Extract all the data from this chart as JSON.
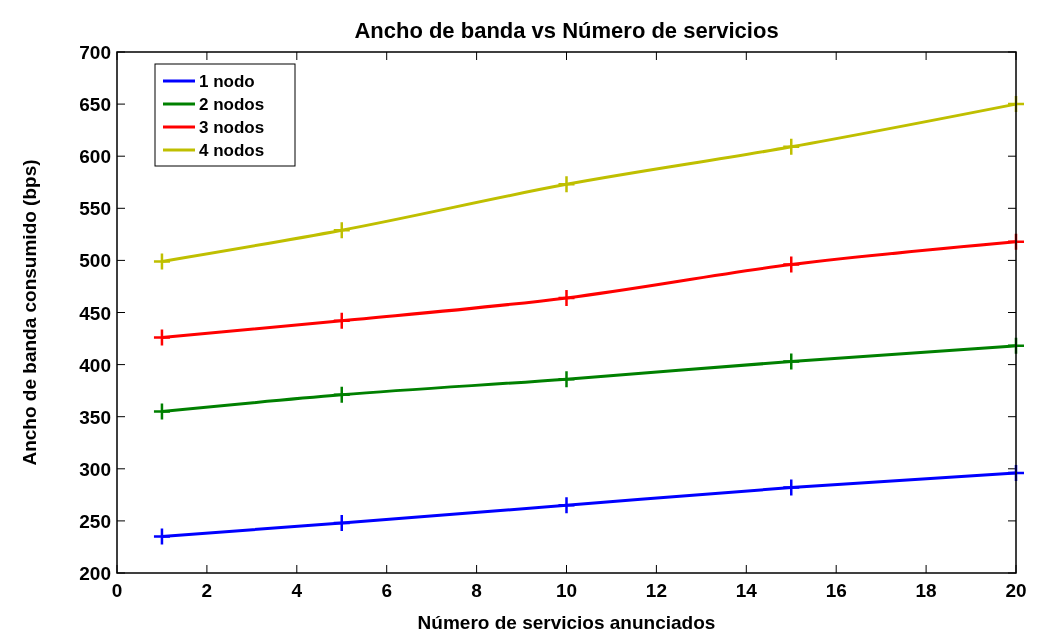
{
  "chart_data": {
    "type": "line",
    "title": "Ancho de banda vs Número de servicios",
    "xlabel": "Número de servicios anunciados",
    "ylabel": "Ancho de banda consumido (bps)",
    "x": [
      1,
      5,
      10,
      15,
      20
    ],
    "series": [
      {
        "name": "1 nodo",
        "color": "#0000ff",
        "values": [
          235,
          248,
          265,
          282,
          296
        ]
      },
      {
        "name": "2 nodos",
        "color": "#008000",
        "values": [
          355,
          371,
          386,
          403,
          418
        ]
      },
      {
        "name": "3 nodos",
        "color": "#ff0000",
        "values": [
          426,
          442,
          464,
          496,
          518
        ]
      },
      {
        "name": "4 nodos",
        "color": "#bfbf00",
        "values": [
          499,
          529,
          573,
          609,
          650
        ]
      }
    ],
    "xlim": [
      0,
      20
    ],
    "xticks": [
      0,
      2,
      4,
      6,
      8,
      10,
      12,
      14,
      16,
      18,
      20
    ],
    "ylim": [
      200,
      700
    ],
    "yticks": [
      200,
      250,
      300,
      350,
      400,
      450,
      500,
      550,
      600,
      650,
      700
    ],
    "marker": "cross",
    "line_style": "solid",
    "legend": "top left",
    "grid": false
  }
}
